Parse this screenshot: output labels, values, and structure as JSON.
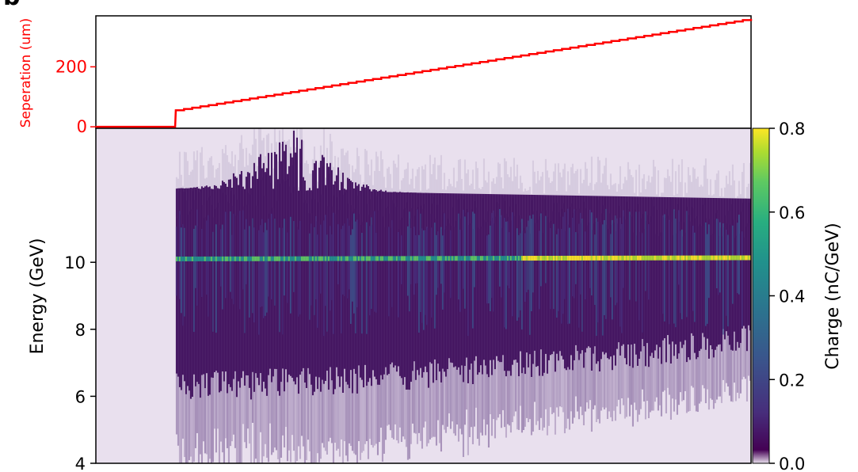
{
  "panel_letter": "b",
  "chart_data": [
    {
      "type": "line",
      "ylabel": "Seperation (um)",
      "color": "#ff0000",
      "ylim": [
        -5,
        370
      ],
      "yticks": [
        0,
        200
      ],
      "shot_range": [
        0,
        1000
      ],
      "step_start_shot": 122,
      "x": [
        0,
        121,
        122,
        1000
      ],
      "y": [
        0,
        0,
        55,
        360
      ]
    },
    {
      "type": "heatmap",
      "ylabel": "Energy (GeV)",
      "ylim": [
        4,
        14
      ],
      "yticks": [
        4,
        6,
        8,
        10
      ],
      "colormap": "viridis",
      "colorbar": {
        "label": "Charge (nC/GeV)",
        "range": [
          0.0,
          0.8
        ],
        "ticks": [
          0.0,
          0.2,
          0.4,
          0.6,
          0.8
        ]
      },
      "peak_energy_GeV": 10.1
    }
  ]
}
